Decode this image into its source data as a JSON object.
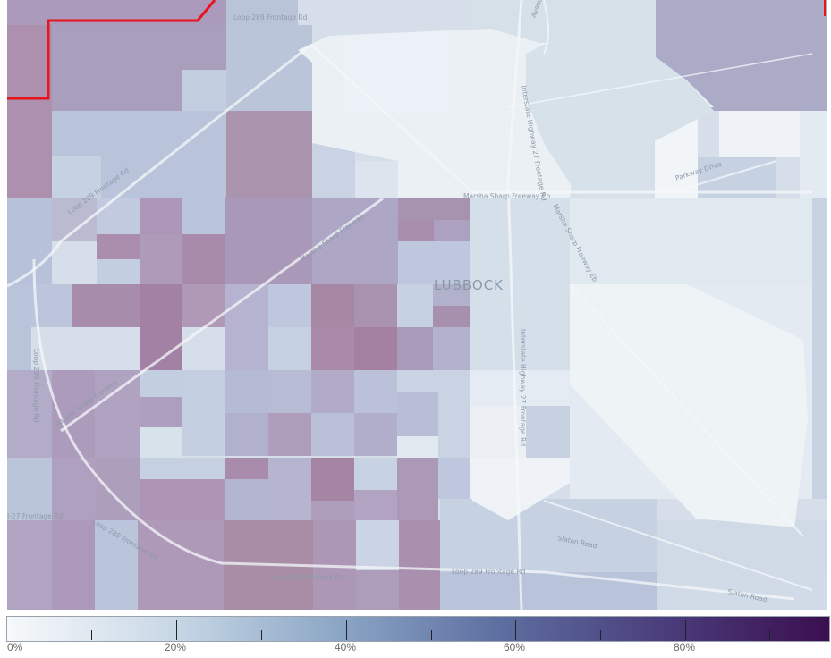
{
  "map": {
    "place_label": "LUBBOCK",
    "road_labels": [
      "Loop 289 Frontage Rd",
      "Loop 289 Frontage Rd",
      "Marsha Sharp Freeway",
      "Marsha Sharp Freeway",
      "Marsha Sharp Freeway Eb",
      "Marsha Sharp Freeway Eb",
      "Interstate Highway 27 Frontage Rd",
      "Interstate Highway 27 Frontage Rd",
      "Loop 289 Frontage Rd",
      "Loop 289 Frontage Rd",
      "Loop 289 Frontage Rd",
      "I-27 Frontage Rd",
      "Slaton Road",
      "Slaton Road",
      "Parkway Drive",
      "Loop 289 Frontage Rd",
      "Avenue"
    ]
  },
  "legend": {
    "tick_labels": [
      "0%",
      "20%",
      "40%",
      "60%",
      "80%"
    ],
    "color_stops": [
      "#f7f9fb",
      "#c9d8e6",
      "#8ca7c6",
      "#5d6ea0",
      "#4a3d7c",
      "#3b0f4f"
    ]
  },
  "colors": {
    "boundary": "#e8141c",
    "block_purple": "#9a82ab",
    "block_blue": "#aab6cf",
    "block_light": "#eef3f7"
  }
}
